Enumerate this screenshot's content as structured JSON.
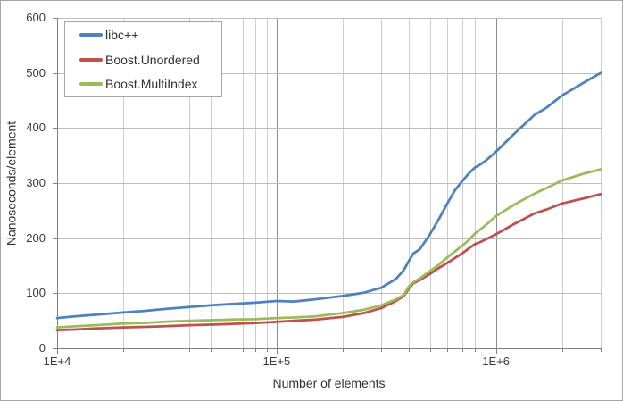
{
  "chart_data": {
    "type": "line",
    "title": "",
    "xlabel": "Number of elements",
    "ylabel": "Nanoseconds/element",
    "x_scale": "log",
    "xlim": [
      10000,
      3000000
    ],
    "ylim": [
      0,
      600
    ],
    "y_ticks": [
      0,
      100,
      200,
      300,
      400,
      500,
      600
    ],
    "x_major_ticks": [
      {
        "value": 10000,
        "label": "1E+4"
      },
      {
        "value": 100000,
        "label": "1E+5"
      },
      {
        "value": 1000000,
        "label": "1E+6"
      }
    ],
    "grid": true,
    "legend_position": "top-left",
    "x": [
      10000,
      12000,
      15000,
      20000,
      25000,
      30000,
      40000,
      50000,
      60000,
      80000,
      100000,
      120000,
      150000,
      200000,
      250000,
      300000,
      350000,
      380000,
      400000,
      420000,
      450000,
      500000,
      550000,
      600000,
      650000,
      700000,
      750000,
      800000,
      850000,
      900000,
      1000000,
      1200000,
      1500000,
      1700000,
      2000000,
      2500000,
      3000000
    ],
    "series": [
      {
        "name": "libc++",
        "color": "#4F81BD",
        "values": [
          55,
          58,
          61,
          65,
          68,
          71,
          75,
          78,
          80,
          83,
          86,
          85,
          89,
          95,
          101,
          110,
          126,
          142,
          158,
          172,
          180,
          207,
          235,
          263,
          287,
          303,
          317,
          328,
          334,
          341,
          357,
          388,
          424,
          437,
          459,
          482,
          500
        ]
      },
      {
        "name": "Boost.Unordered",
        "color": "#C0504D",
        "values": [
          33,
          34,
          36,
          38,
          39,
          40,
          42,
          43,
          44,
          46,
          48,
          50,
          52,
          57,
          64,
          73,
          86,
          95,
          108,
          118,
          124,
          135,
          146,
          155,
          164,
          172,
          181,
          189,
          193,
          198,
          207,
          225,
          245,
          252,
          263,
          272,
          280
        ]
      },
      {
        "name": "Boost.MultiIndex",
        "color": "#9BBB59",
        "values": [
          38,
          40,
          42,
          45,
          46,
          48,
          50,
          51,
          52,
          53,
          55,
          56,
          58,
          64,
          70,
          78,
          89,
          97,
          112,
          120,
          127,
          140,
          152,
          165,
          176,
          186,
          196,
          208,
          216,
          224,
          240,
          260,
          281,
          291,
          305,
          317,
          325
        ]
      }
    ],
    "colors": {
      "background": "#FFFFFF",
      "frame_border": "#A6A6A6",
      "axis_line": "#808080",
      "gridline_minor": "#CDCDCD",
      "gridline_major": "#8F8F8F",
      "gridline_horizontal": "#BDBDBD",
      "tick_text": "#3A3A3A"
    }
  }
}
